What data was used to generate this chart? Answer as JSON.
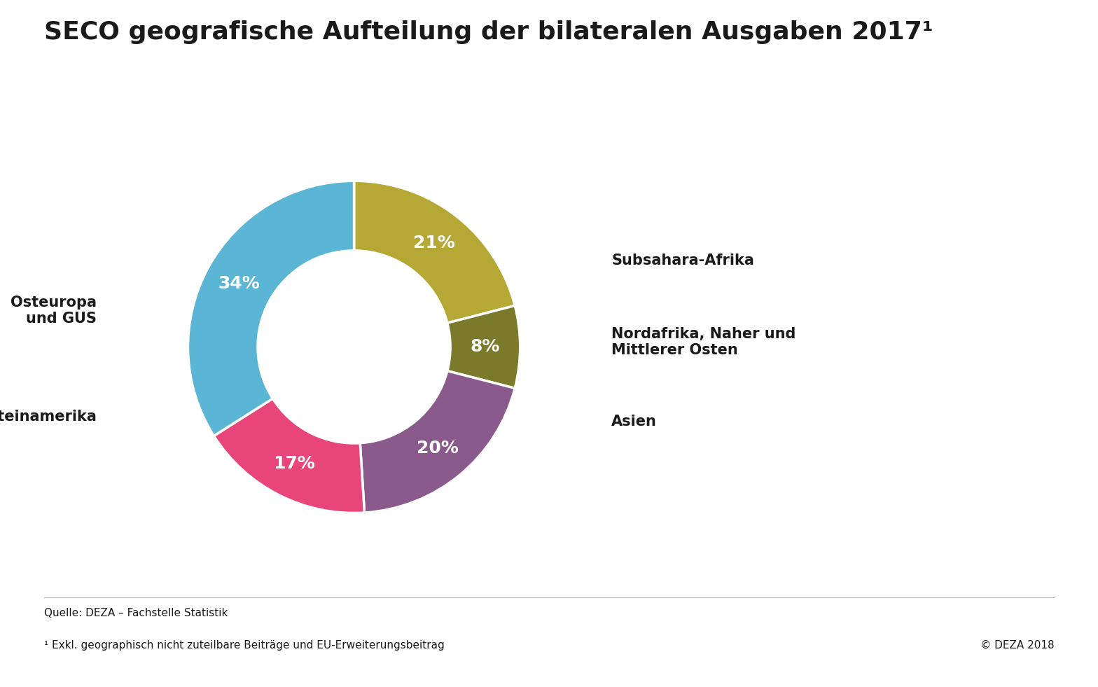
{
  "title": "SECO geografische Aufteilung der bilateralen Ausgaben 2017¹",
  "segments": [
    {
      "label": "Subsahara-Afrika",
      "pct": 21,
      "color": "#b5a834"
    },
    {
      "label": "Nordafrika, Naher und\nMittlerer Osten",
      "pct": 8,
      "color": "#7a7a2a"
    },
    {
      "label": "Asien",
      "pct": 20,
      "color": "#8b5a8c"
    },
    {
      "label": "Lateinamerika",
      "pct": 17,
      "color": "#e8457a"
    },
    {
      "label": "Osteuropa\nund GUS",
      "pct": 34,
      "color": "#5bb5d5"
    }
  ],
  "start_angle": 90,
  "donut_width": 0.42,
  "background_color": "#ffffff",
  "title_fontsize": 26,
  "label_fontsize": 15,
  "pct_fontsize": 18,
  "footnote1": "Quelle: DEZA – Fachstelle Statistik",
  "footnote2": "¹ Exkl. geographisch nicht zuteilbare Beiträge und EU-Erweiterungsbeitrag",
  "copyright": "© DEZA 2018",
  "footnote_fontsize": 11
}
